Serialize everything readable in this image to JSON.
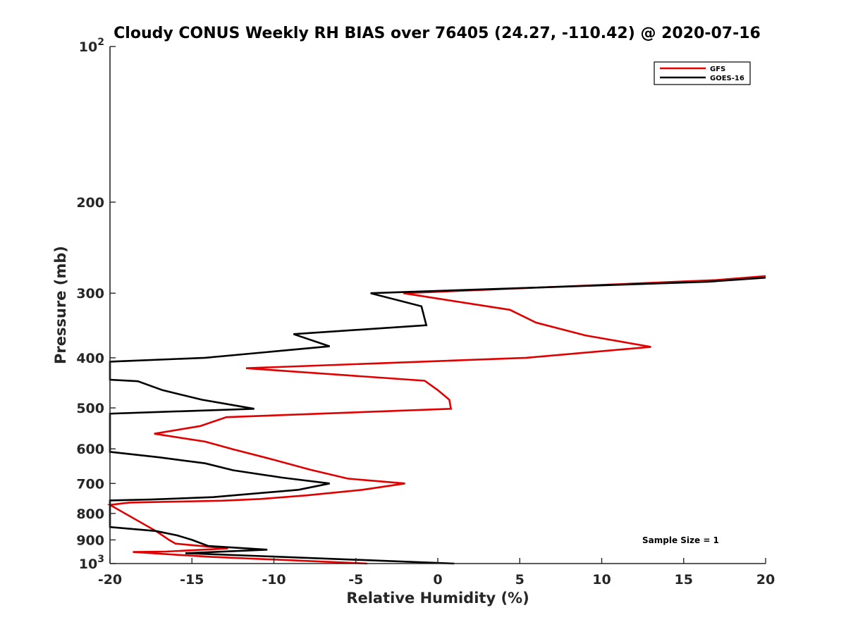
{
  "chart_data": {
    "type": "line",
    "title": "Cloudy CONUS Weekly RH BIAS over 76405 (24.27, -110.42) @ 2020-07-16",
    "xlabel": "Relative Humidity (%)",
    "ylabel": "Pressure (mb)",
    "xlim": [
      -20,
      20
    ],
    "ylim": [
      100,
      1000
    ],
    "yscale": "log",
    "y_reversed": true,
    "x_ticks": [
      {
        "value": -20,
        "label": "-20"
      },
      {
        "value": -15,
        "label": "-15"
      },
      {
        "value": -10,
        "label": "-10"
      },
      {
        "value": -5,
        "label": "-5"
      },
      {
        "value": 0,
        "label": "0"
      },
      {
        "value": 5,
        "label": "5"
      },
      {
        "value": 10,
        "label": "10"
      },
      {
        "value": 15,
        "label": "15"
      },
      {
        "value": 20,
        "label": "20"
      }
    ],
    "y_ticks": [
      {
        "value": 100,
        "base": "10",
        "exp": "2"
      },
      {
        "value": 200,
        "label": "200"
      },
      {
        "value": 300,
        "label": "300"
      },
      {
        "value": 400,
        "label": "400"
      },
      {
        "value": 500,
        "label": "500"
      },
      {
        "value": 600,
        "label": "600"
      },
      {
        "value": 700,
        "label": "700"
      },
      {
        "value": 800,
        "label": "800"
      },
      {
        "value": 900,
        "label": "900"
      },
      {
        "value": 1000,
        "base": "10",
        "exp": "3"
      }
    ],
    "grid": false,
    "legend_position": "top-right",
    "annotation": "Sample Size = 1",
    "series": [
      {
        "name": "GFS",
        "color": "#e00000",
        "points": [
          [
            20,
            278
          ],
          [
            17,
            283
          ],
          [
            -2.1,
            300
          ],
          [
            4.4,
            323
          ],
          [
            6.0,
            342
          ],
          [
            9.0,
            362
          ],
          [
            13.0,
            381
          ],
          [
            5.4,
            400
          ],
          [
            -11.7,
            419
          ],
          [
            -0.8,
            443
          ],
          [
            0.0,
            462
          ],
          [
            0.7,
            482
          ],
          [
            0.8,
            502
          ],
          [
            -12.9,
            521
          ],
          [
            -14.5,
            542
          ],
          [
            -17.3,
            561
          ],
          [
            -14.2,
            581
          ],
          [
            -12.5,
            601
          ],
          [
            -10.0,
            630
          ],
          [
            -7.8,
            658
          ],
          [
            -5.5,
            685
          ],
          [
            -2.0,
            700
          ],
          [
            -4.6,
            720
          ],
          [
            -8.0,
            738
          ],
          [
            -10.8,
            750
          ],
          [
            -13.2,
            756
          ],
          [
            -18.8,
            762
          ],
          [
            -20,
            770
          ],
          [
            -17.2,
            865
          ],
          [
            -16.8,
            882
          ],
          [
            -16.4,
            900
          ],
          [
            -16.0,
            915
          ],
          [
            -12.8,
            935
          ],
          [
            -16.6,
            948
          ],
          [
            -18.6,
            950
          ],
          [
            -14.0,
            970
          ],
          [
            -4.3,
            1000
          ]
        ]
      },
      {
        "name": "GOES-16",
        "color": "#000000",
        "points": [
          [
            20,
            280
          ],
          [
            16.5,
            285
          ],
          [
            -4.1,
            300
          ],
          [
            -1.0,
            318
          ],
          [
            -0.7,
            346
          ],
          [
            -8.8,
            360
          ],
          [
            -6.6,
            380
          ],
          [
            -14.2,
            400
          ],
          [
            -20,
            407
          ],
          [
            -20,
            441
          ],
          [
            -18.3,
            444
          ],
          [
            -16.8,
            462
          ],
          [
            -14.4,
            482
          ],
          [
            -11.2,
            502
          ],
          [
            -20,
            513
          ],
          [
            -20,
            608
          ],
          [
            -17.0,
            623
          ],
          [
            -14.2,
            640
          ],
          [
            -12.5,
            660
          ],
          [
            -9.5,
            682
          ],
          [
            -6.6,
            700
          ],
          [
            -8.5,
            720
          ],
          [
            -13.7,
            744
          ],
          [
            -17.5,
            752
          ],
          [
            -20,
            755
          ],
          [
            -20,
            850
          ],
          [
            -17.2,
            865
          ],
          [
            -15.9,
            882
          ],
          [
            -15.0,
            900
          ],
          [
            -14.0,
            925
          ],
          [
            -10.4,
            940
          ],
          [
            -15.4,
            955
          ],
          [
            -8.0,
            975
          ],
          [
            1.0,
            1000
          ]
        ]
      }
    ]
  }
}
